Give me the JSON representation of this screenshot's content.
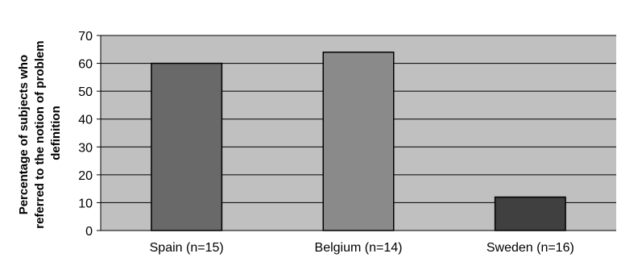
{
  "chart_data": {
    "type": "bar",
    "categories": [
      "Spain (n=15)",
      "Belgium (n=14)",
      "Sweden (n=16)"
    ],
    "values": [
      60,
      64,
      12
    ],
    "ylabel": "Percentage of subjects who referred to the notion of problem definition",
    "ylabel_lines": [
      "Percentage of subjects who",
      "referred to the notion of problem",
      "definition"
    ],
    "ylim": [
      0,
      70
    ],
    "yticks": [
      0,
      10,
      20,
      30,
      40,
      50,
      60,
      70
    ],
    "grid": true,
    "colors": {
      "plot_background": "#c0c0c0",
      "gridline": "#000000",
      "bars": [
        "#696969",
        "#8a8a8a",
        "#404040"
      ],
      "bar_outline": "#000000"
    }
  }
}
